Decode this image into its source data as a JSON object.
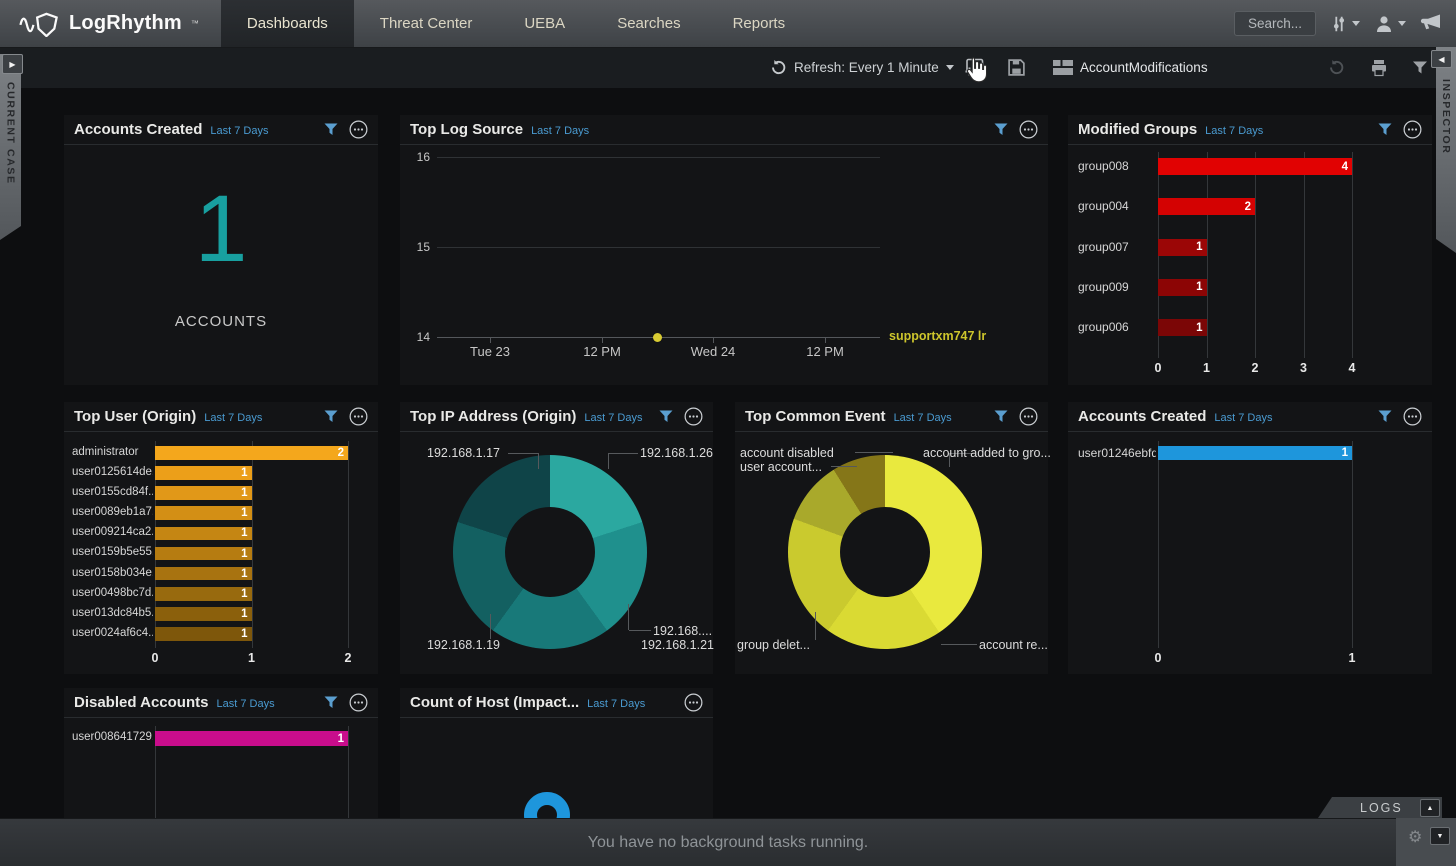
{
  "nav": {
    "brand": "LogRhythm",
    "brand_tm": "™",
    "tabs": [
      {
        "label": "Dashboards",
        "active": true
      },
      {
        "label": "Threat Center",
        "active": false
      },
      {
        "label": "UEBA",
        "active": false
      },
      {
        "label": "Searches",
        "active": false
      },
      {
        "label": "Reports",
        "active": false
      }
    ],
    "search_placeholder": "Search..."
  },
  "toolbar": {
    "refresh_label": "Refresh: Every 1 Minute",
    "dashboard_name": "AccountModifications"
  },
  "side_panels": {
    "current_case": "CURRENT CASE",
    "inspector": "INSPECTOR",
    "logs": "LOGS"
  },
  "status_bar": {
    "message": "You have no background tasks running."
  },
  "icons": {
    "nav": [
      "sliders-icon",
      "user-icon",
      "megaphone-icon"
    ],
    "toolbar": [
      "refresh-icon",
      "add-dashboard-icon",
      "save-icon",
      "layout-icon",
      "undo-icon",
      "print-icon",
      "filter-icon"
    ],
    "widget_header": [
      "filter-icon",
      "more-icon"
    ],
    "corners": [
      "play-icon",
      "collapse-left-icon",
      "up-arrow-icon",
      "down-arrow-icon",
      "gear-icon"
    ]
  },
  "colors": {
    "accent_blue": "#4A9BD1",
    "teal": "#18A0A0",
    "red": "#E10202",
    "orange": "#F4A71C",
    "yellow": "#E9E93E",
    "bar_blue": "#1E96DC",
    "magenta": "#C90D8C"
  },
  "widgets": [
    {
      "id": "accounts-created-summary",
      "title": "Accounts Created",
      "range": "Last 7 Days",
      "chart": {
        "type": "big-number",
        "value": "1",
        "unit": "ACCOUNTS",
        "color": "#18A0A0"
      }
    },
    {
      "id": "top-log-source",
      "title": "Top Log Source",
      "range": "Last 7 Days",
      "chart": {
        "type": "line",
        "yticks": [
          "16",
          "15",
          "14"
        ],
        "ylim": [
          14,
          16
        ],
        "xticks": [
          "Tue 23",
          "12 PM",
          "Wed 24",
          "12 PM"
        ],
        "series": [
          {
            "name": "supportxm747 lr",
            "color": "#CDC52C",
            "dot_color": "#D9CC33",
            "value": 14
          }
        ]
      }
    },
    {
      "id": "modified-groups",
      "title": "Modified Groups",
      "range": "Last 7 Days",
      "chart": {
        "type": "bar-h",
        "xticks": [
          "0",
          "1",
          "2",
          "3",
          "4"
        ],
        "xmax": 4,
        "rows": [
          {
            "label": "group008",
            "value": 4,
            "color": "#E10202"
          },
          {
            "label": "group004",
            "value": 2,
            "color": "#D40202"
          },
          {
            "label": "group007",
            "value": 1,
            "color": "#9B0606"
          },
          {
            "label": "group009",
            "value": 1,
            "color": "#8C0505"
          },
          {
            "label": "group006",
            "value": 1,
            "color": "#7B0606"
          }
        ]
      }
    },
    {
      "id": "top-user-origin",
      "title": "Top User (Origin)",
      "range": "Last 7 Days",
      "chart": {
        "type": "bar-h",
        "xticks": [
          "0",
          "1",
          "2"
        ],
        "xmax": 2,
        "rows": [
          {
            "label": "administrator",
            "value": 2,
            "color": "#F4A71C"
          },
          {
            "label": "user0125614de...",
            "value": 1,
            "color": "#EC9F19"
          },
          {
            "label": "user0155cd84f...",
            "value": 1,
            "color": "#E19818"
          },
          {
            "label": "user0089eb1a7...",
            "value": 1,
            "color": "#D38F15"
          },
          {
            "label": "user009214ca2...",
            "value": 1,
            "color": "#C58613"
          },
          {
            "label": "user0159b5e55...",
            "value": 1,
            "color": "#B67C11"
          },
          {
            "label": "user0158b034e...",
            "value": 1,
            "color": "#A87310"
          },
          {
            "label": "user00498bc7d...",
            "value": 1,
            "color": "#986A0E"
          },
          {
            "label": "user013dc84b5...",
            "value": 1,
            "color": "#8B600C"
          },
          {
            "label": "user0024af6c4...",
            "value": 1,
            "color": "#7E570B"
          }
        ]
      }
    },
    {
      "id": "top-ip-origin",
      "title": "Top IP Address (Origin)",
      "range": "Last 7 Days",
      "chart": {
        "type": "donut",
        "segments": [
          {
            "label": "192.168.1.26",
            "angle": 72,
            "color": "#2BA8A0"
          },
          {
            "label": "192.168....",
            "angle": 72,
            "color": "#1F908D"
          },
          {
            "label": "192.168.1.21",
            "angle": 72,
            "color": "#187979"
          },
          {
            "label": "192.168.1.19",
            "angle": 72,
            "color": "#136061"
          },
          {
            "label": "192.168.1.17",
            "angle": 72,
            "color": "#0F4448"
          }
        ]
      }
    },
    {
      "id": "top-common-event",
      "title": "Top Common Event",
      "range": "Last 7 Days",
      "chart": {
        "type": "donut",
        "segments": [
          {
            "label": "account added to gro...",
            "angle": 146,
            "color": "#E9E93E"
          },
          {
            "label": "account re...",
            "angle": 70,
            "color": "#DADA33"
          },
          {
            "label": "group delet...",
            "angle": 74,
            "color": "#CACA2E"
          },
          {
            "label": "user account...",
            "angle": 38,
            "color": "#A9A92B"
          },
          {
            "label": "account disabled",
            "angle": 32,
            "color": "#857618"
          }
        ]
      }
    },
    {
      "id": "accounts-created-bar",
      "title": "Accounts Created",
      "range": "Last 7 Days",
      "chart": {
        "type": "bar-h",
        "xticks": [
          "0",
          "1"
        ],
        "xmax": 1,
        "rows": [
          {
            "label": "user01246ebfd...",
            "value": 1,
            "color": "#1E96DC"
          }
        ]
      }
    },
    {
      "id": "disabled-accounts",
      "title": "Disabled Accounts",
      "range": "Last 7 Days",
      "chart": {
        "type": "bar-h",
        "xticks": [],
        "xmax": 1,
        "rows": [
          {
            "label": "user008641729...",
            "value": 1,
            "color": "#C90D8C"
          }
        ]
      }
    },
    {
      "id": "count-of-host",
      "title": "Count of Host (Impact...",
      "range": "Last 7 Days",
      "chart": {
        "type": "partial-ring",
        "color": "#1E96DC"
      }
    }
  ]
}
